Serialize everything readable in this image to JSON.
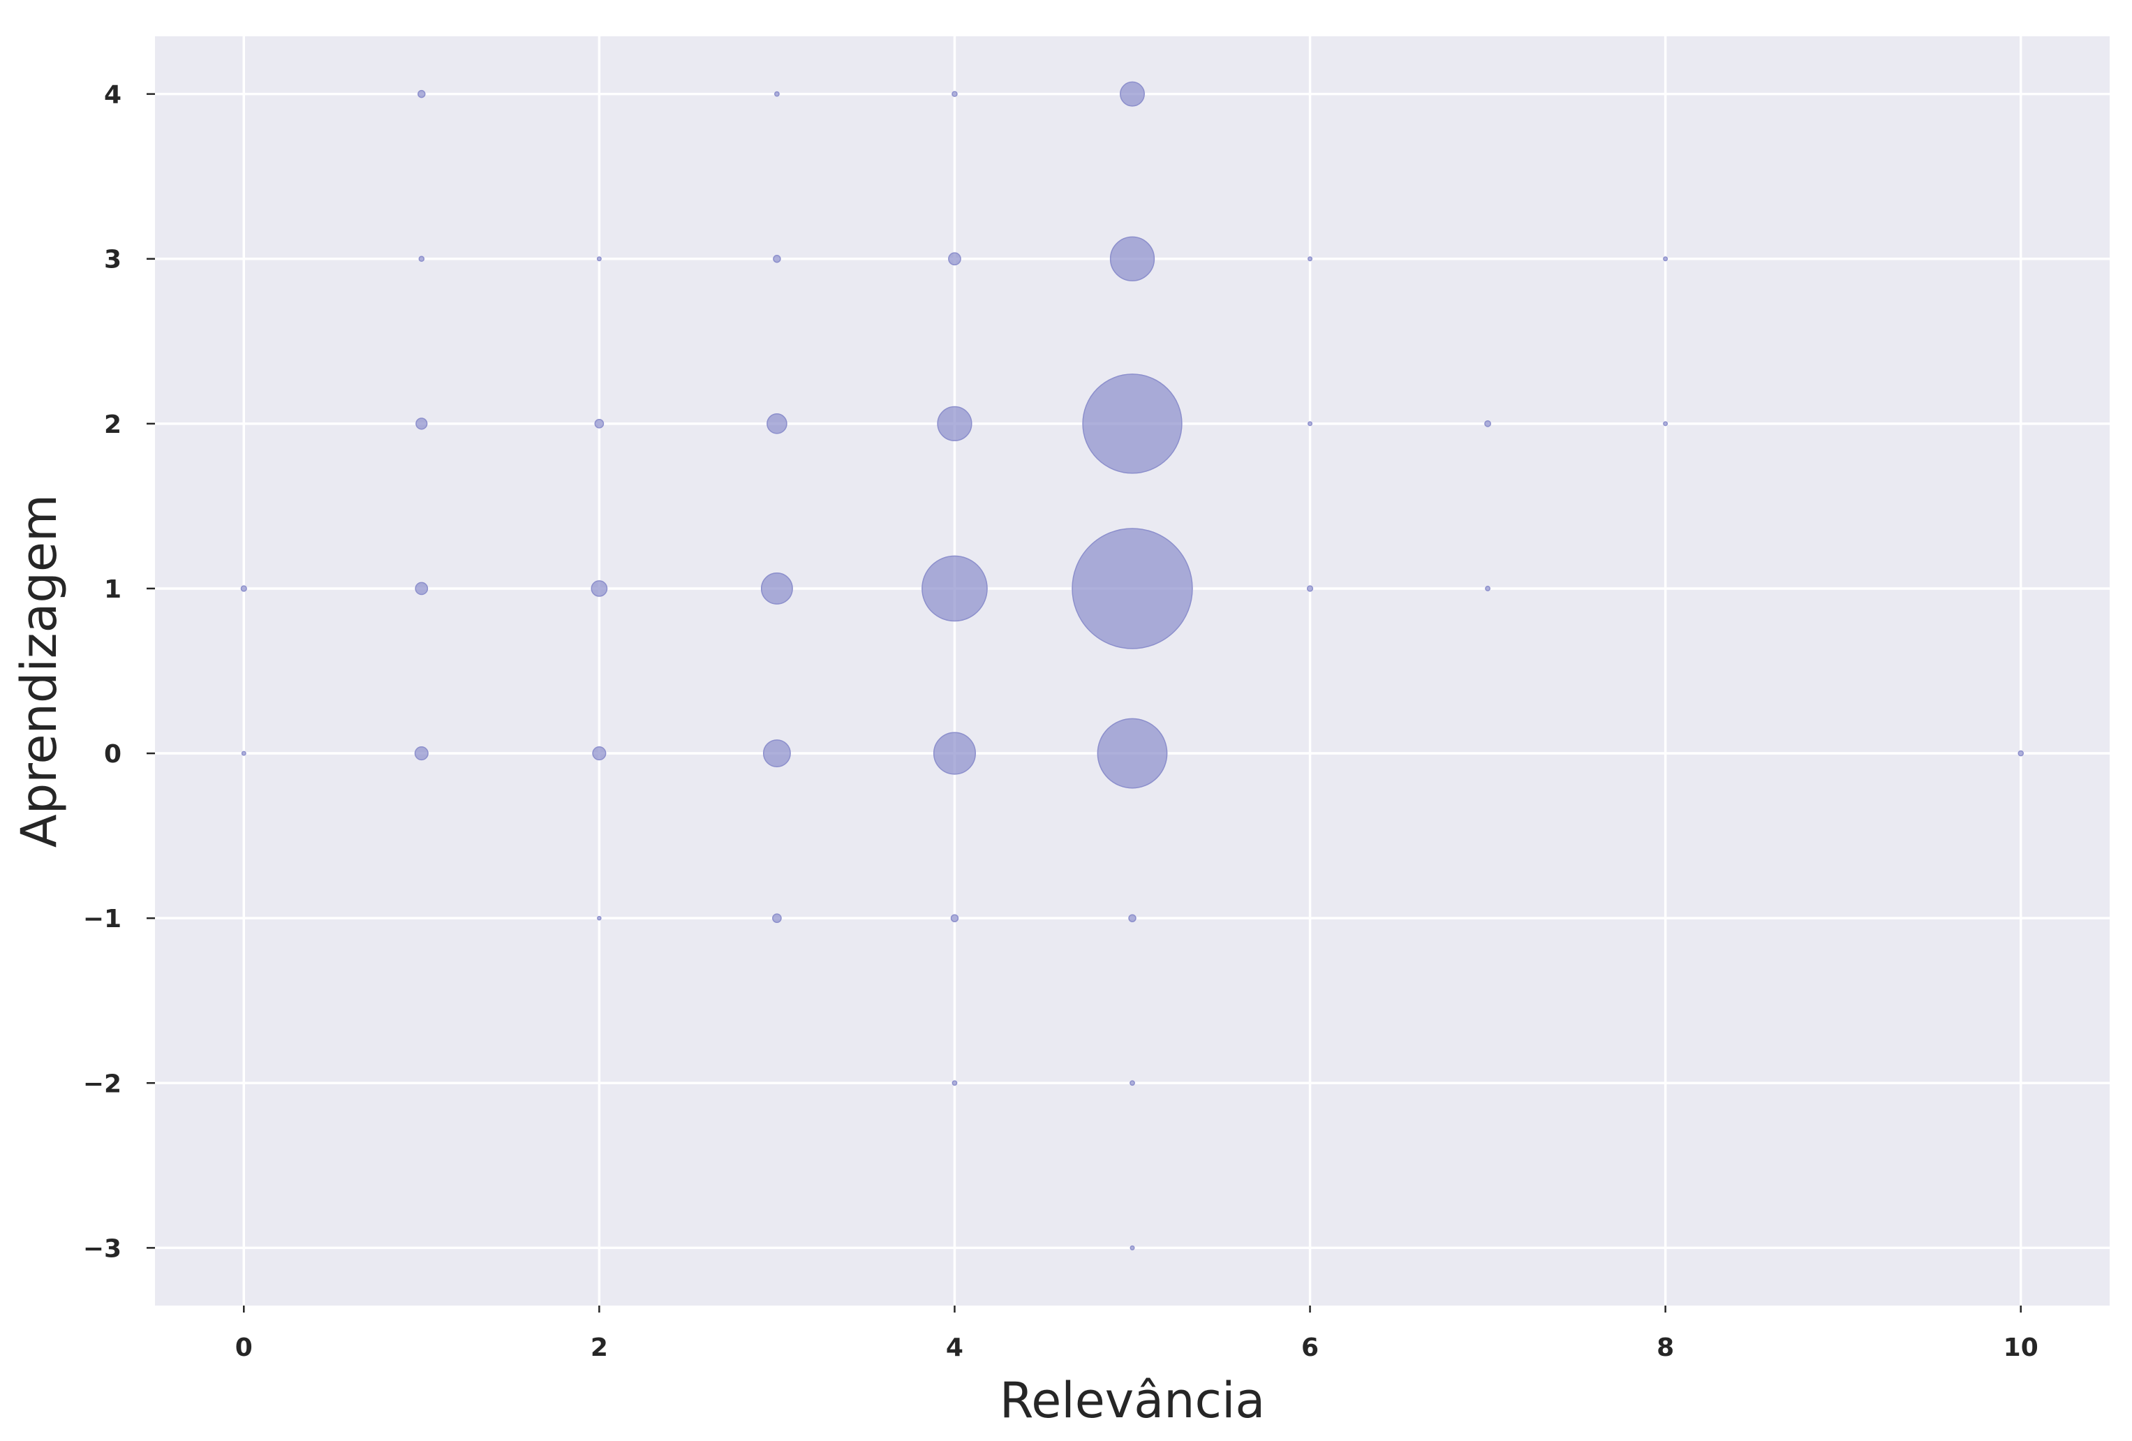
{
  "chart_data": {
    "type": "scatter",
    "title": "",
    "xlabel": "Relevância",
    "ylabel": "Aprendizagem",
    "xlim": [
      -0.5,
      10.5
    ],
    "ylim": [
      -3.35,
      4.35
    ],
    "xticks": [
      0,
      2,
      4,
      6,
      8,
      10
    ],
    "yticks": [
      -3,
      -2,
      -1,
      0,
      1,
      2,
      3,
      4
    ],
    "xtick_labels": [
      "0",
      "2",
      "4",
      "6",
      "8",
      "10"
    ],
    "ytick_labels": [
      "−3",
      "−2",
      "−1",
      "0",
      "1",
      "2",
      "3",
      "4"
    ],
    "grid": true,
    "background": "#eaeaf2",
    "marker_color": "#8c8fcc",
    "marker_alpha": 0.7,
    "size_encoding": "bubble area proportional to count",
    "points": [
      {
        "x": 1,
        "y": 4,
        "count": 1
      },
      {
        "x": 3,
        "y": 4,
        "count": 0.4
      },
      {
        "x": 4,
        "y": 4,
        "count": 0.5
      },
      {
        "x": 5,
        "y": 4,
        "count": 12
      },
      {
        "x": 1,
        "y": 3,
        "count": 0.5
      },
      {
        "x": 2,
        "y": 3,
        "count": 0.3
      },
      {
        "x": 3,
        "y": 3,
        "count": 1
      },
      {
        "x": 4,
        "y": 3,
        "count": 3
      },
      {
        "x": 5,
        "y": 3,
        "count": 40
      },
      {
        "x": 6,
        "y": 3,
        "count": 0.3
      },
      {
        "x": 8,
        "y": 3,
        "count": 0.3
      },
      {
        "x": 1,
        "y": 2,
        "count": 2.5
      },
      {
        "x": 2,
        "y": 2,
        "count": 1.5
      },
      {
        "x": 3,
        "y": 2,
        "count": 8
      },
      {
        "x": 4,
        "y": 2,
        "count": 24
      },
      {
        "x": 5,
        "y": 2,
        "count": 204
      },
      {
        "x": 6,
        "y": 2,
        "count": 0.3
      },
      {
        "x": 7,
        "y": 2,
        "count": 0.7
      },
      {
        "x": 8,
        "y": 2,
        "count": 0.3
      },
      {
        "x": 0,
        "y": 1,
        "count": 0.6
      },
      {
        "x": 1,
        "y": 1,
        "count": 3
      },
      {
        "x": 2,
        "y": 1,
        "count": 5
      },
      {
        "x": 3,
        "y": 1,
        "count": 20
      },
      {
        "x": 4,
        "y": 1,
        "count": 88
      },
      {
        "x": 5,
        "y": 1,
        "count": 300
      },
      {
        "x": 6,
        "y": 1,
        "count": 0.6
      },
      {
        "x": 7,
        "y": 1,
        "count": 0.4
      },
      {
        "x": 0,
        "y": 0,
        "count": 0.3
      },
      {
        "x": 1,
        "y": 0,
        "count": 3.5
      },
      {
        "x": 2,
        "y": 0,
        "count": 3.5
      },
      {
        "x": 3,
        "y": 0,
        "count": 15
      },
      {
        "x": 4,
        "y": 0,
        "count": 36
      },
      {
        "x": 5,
        "y": 0,
        "count": 100
      },
      {
        "x": 10,
        "y": 0,
        "count": 0.5
      },
      {
        "x": 2,
        "y": -1,
        "count": 0.2
      },
      {
        "x": 3,
        "y": -1,
        "count": 1.5
      },
      {
        "x": 4,
        "y": -1,
        "count": 1
      },
      {
        "x": 5,
        "y": -1,
        "count": 1
      },
      {
        "x": 4,
        "y": -2,
        "count": 0.4
      },
      {
        "x": 5,
        "y": -2,
        "count": 0.4
      },
      {
        "x": 5,
        "y": -3,
        "count": 0.3
      }
    ]
  }
}
